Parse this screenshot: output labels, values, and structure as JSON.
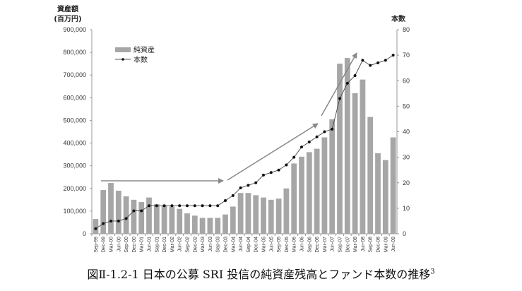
{
  "caption": {
    "text": "図Ⅱ-1.2-1  日本の公募 SRI 投信の純資産残高とファンド本数の推移",
    "footnote": "3"
  },
  "chart_data": {
    "type": "bar+line",
    "title": "日本の公募 SRI 投信の純資産残高とファンド本数の推移",
    "left_axis": {
      "label_line1": "資産額",
      "label_line2": "(百万円)",
      "range": [
        0,
        900000
      ],
      "ticks": [
        "0",
        "100,000",
        "200,000",
        "300,000",
        "400,000",
        "500,000",
        "600,000",
        "700,000",
        "800,000",
        "900,000"
      ],
      "tick_values": [
        0,
        100000,
        200000,
        300000,
        400000,
        500000,
        600000,
        700000,
        800000,
        900000
      ]
    },
    "right_axis": {
      "label": "本数",
      "range": [
        0,
        80
      ],
      "ticks": [
        "0",
        "10",
        "20",
        "30",
        "40",
        "50",
        "60",
        "70",
        "80"
      ],
      "tick_values": [
        0,
        10,
        20,
        30,
        40,
        50,
        60,
        70,
        80
      ]
    },
    "categories": [
      "Sep-99",
      "Dec-99",
      "Mar-00",
      "Jun-00",
      "Sep-00",
      "Dec-00",
      "Mar-01",
      "Jun-01",
      "Sep-01",
      "Dec-01",
      "Mar-02",
      "Jun-02",
      "Sep-02",
      "Dec-02",
      "Mar-03",
      "Jun-03",
      "Sep-03",
      "Dec-03",
      "Mar-04",
      "Jun-04",
      "Sep-04",
      "Dec-04",
      "Mar-05",
      "Jun-05",
      "Sep-05",
      "Dec-05",
      "Mar-06",
      "Jun-06",
      "Sep-06",
      "Dec-06",
      "Mar-07",
      "Jun-07",
      "Sep-07",
      "Dec-07",
      "Mar-08",
      "Jun-08",
      "Sep-08",
      "Dec-08",
      "Mar-09",
      "Jun-09"
    ],
    "series": [
      {
        "name": "純資産",
        "type": "bar",
        "axis": "left",
        "color": "#a6a6a6",
        "values": [
          65000,
          193000,
          224000,
          190000,
          165000,
          150000,
          140000,
          160000,
          130000,
          125000,
          120000,
          110000,
          90000,
          80000,
          70000,
          70000,
          70000,
          85000,
          120000,
          180000,
          180000,
          170000,
          160000,
          150000,
          155000,
          200000,
          310000,
          340000,
          360000,
          375000,
          425000,
          505000,
          750000,
          775000,
          620000,
          680000,
          515000,
          355000,
          325000,
          425000
        ]
      },
      {
        "name": "本数",
        "type": "line",
        "axis": "right",
        "color": "#222222",
        "values": [
          2,
          4,
          5,
          5,
          6,
          9,
          9,
          11,
          11,
          11,
          11,
          11,
          11,
          11,
          11,
          11,
          11,
          13,
          15,
          18,
          19,
          20,
          23,
          24,
          25,
          27,
          30,
          34,
          36,
          38,
          40,
          41,
          53,
          59,
          62,
          68,
          66,
          67,
          68,
          70
        ]
      }
    ],
    "legend": {
      "position": "top-left",
      "entries": [
        "純資産",
        "本数"
      ]
    },
    "annotations": [
      {
        "type": "arrow",
        "from_category": "Dec-99",
        "to_category": "Sep-03",
        "description": "flat trend"
      },
      {
        "type": "arrow",
        "from_category": "Dec-03",
        "to_category": "Dec-06",
        "description": "rising trend"
      },
      {
        "type": "arrow",
        "from_category": "Mar-07",
        "to_category": "Mar-08",
        "description": "steep rise"
      }
    ],
    "grid": false
  }
}
